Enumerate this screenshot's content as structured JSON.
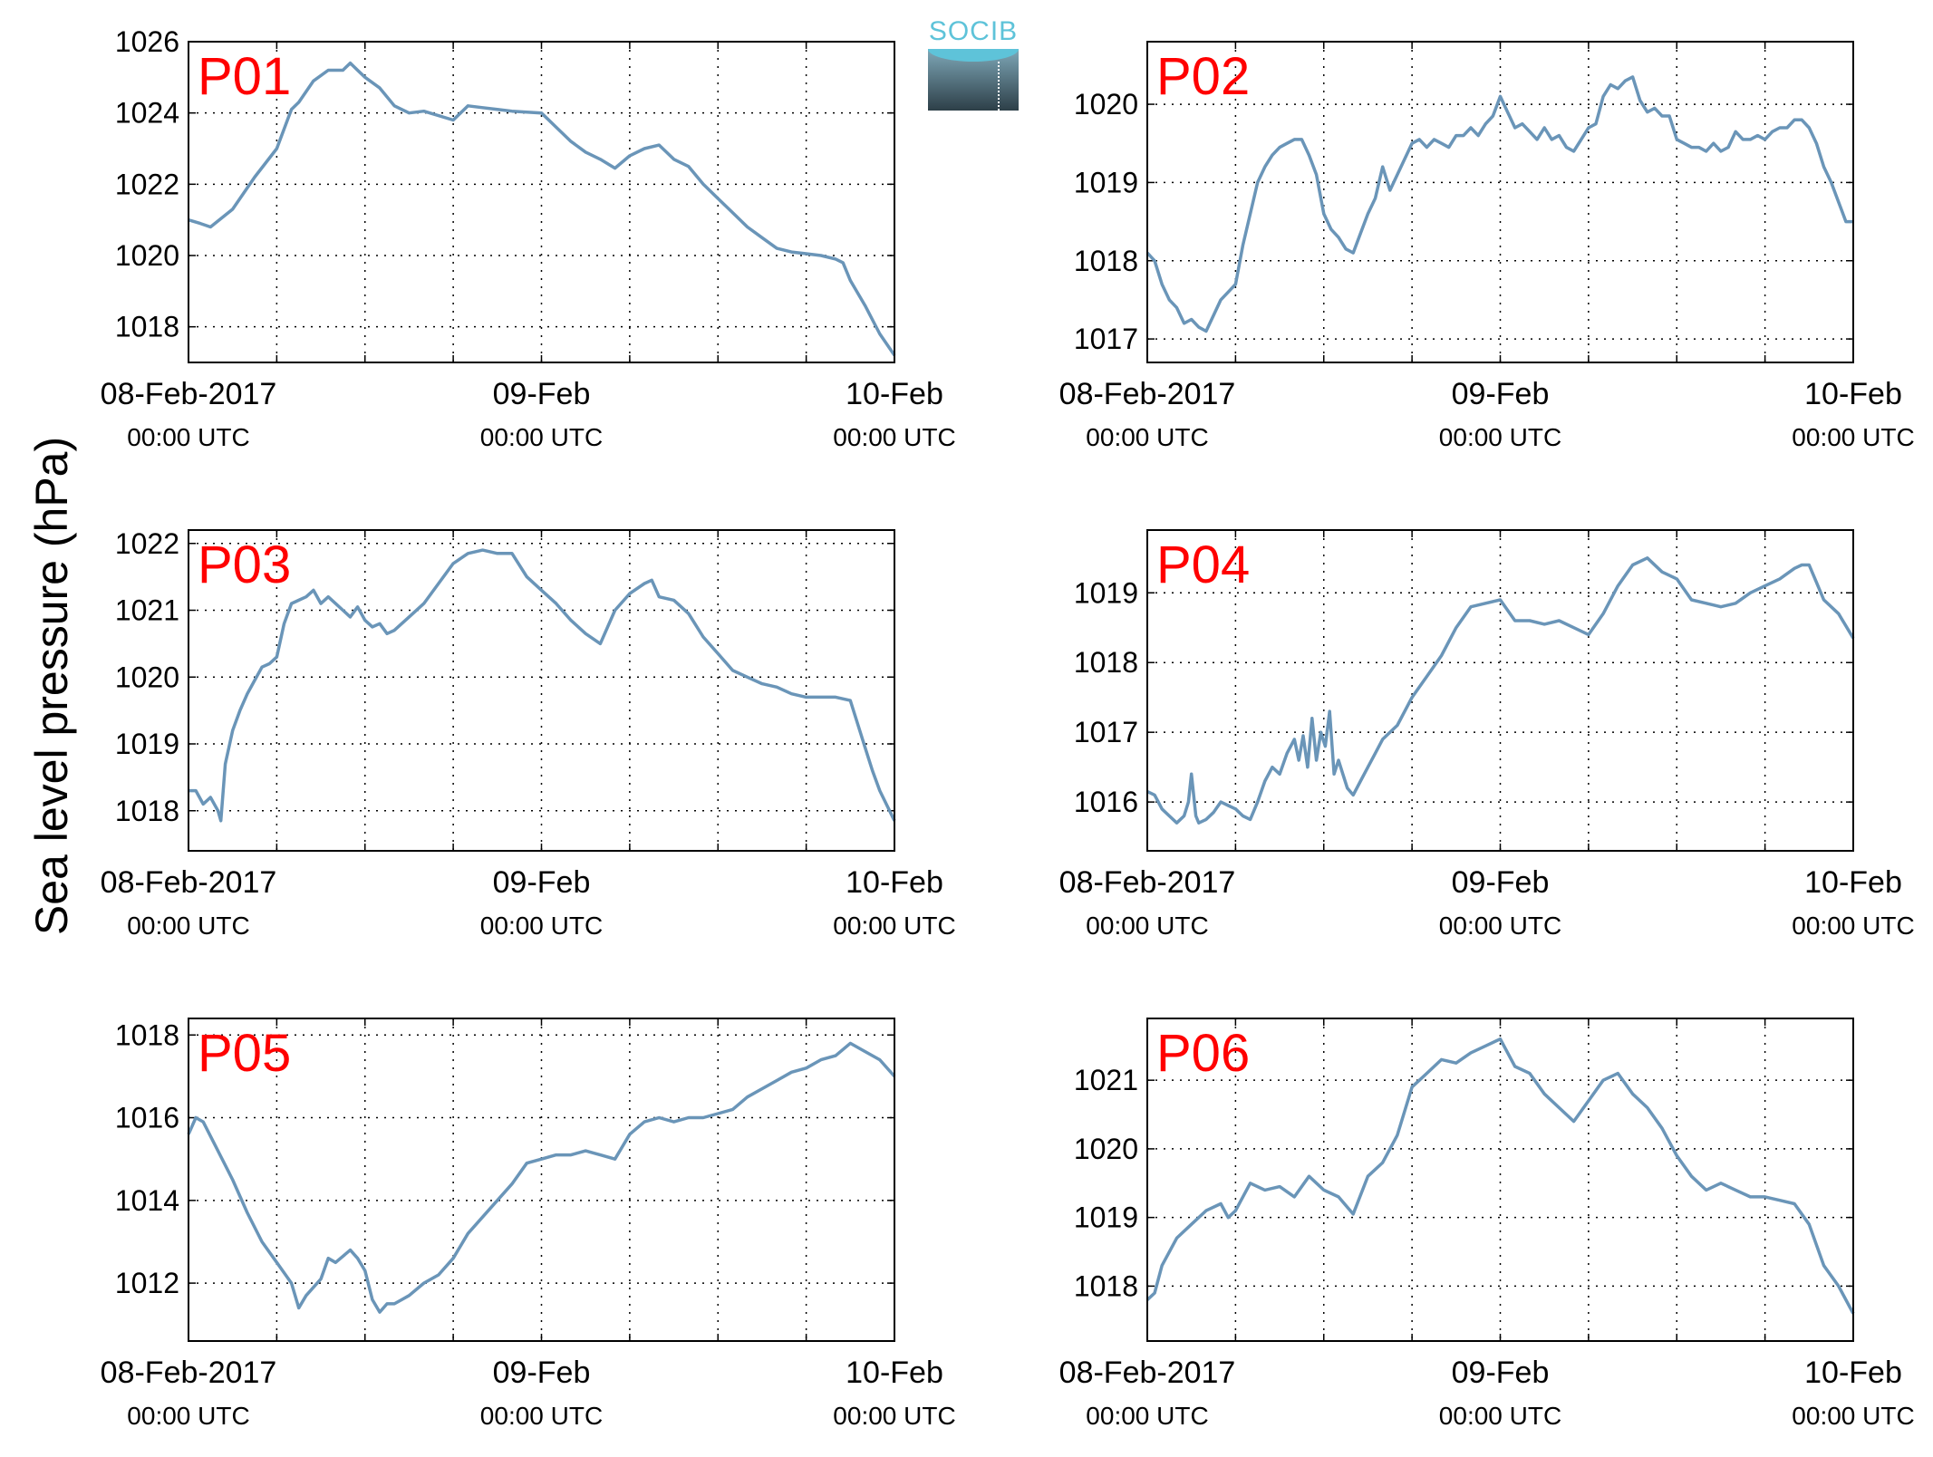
{
  "y_label": "Sea level pressure (hPa)",
  "logo": {
    "text": "SOCIB",
    "color": "#5ec3d9"
  },
  "styling": {
    "line_color": "#6a95b8",
    "panel_label_color": "#ff0000"
  },
  "chart_data": [
    {
      "type": "line",
      "label": "P01",
      "xlim": [
        0,
        48
      ],
      "ylim": [
        1017,
        1026
      ],
      "yticks": [
        1018,
        1020,
        1022,
        1024,
        1026
      ],
      "xticks": [
        {
          "t": 0,
          "line1": "08-Feb-2017",
          "line2": "00:00 UTC"
        },
        {
          "t": 24,
          "line1": "09-Feb",
          "line2": "00:00 UTC"
        },
        {
          "t": 48,
          "line1": "10-Feb",
          "line2": "00:00 UTC"
        }
      ],
      "grid": true,
      "x": [
        0,
        0.8,
        1.5,
        3,
        4.5,
        6,
        7,
        7.5,
        8.5,
        9.5,
        10.5,
        11,
        11.5,
        12,
        13,
        14,
        15,
        16,
        18,
        19,
        20,
        21,
        22,
        24,
        25,
        26,
        27,
        28,
        29,
        30,
        31,
        32,
        33,
        34,
        35,
        36,
        37,
        38,
        39,
        40,
        41,
        42,
        43,
        44,
        44.5,
        45,
        46,
        47,
        48
      ],
      "y": [
        1021,
        1020.9,
        1020.8,
        1021.3,
        1022.2,
        1023,
        1024.1,
        1024.3,
        1024.9,
        1025.2,
        1025.2,
        1025.4,
        1025.2,
        1025,
        1024.7,
        1024.2,
        1024,
        1024.05,
        1023.8,
        1024.2,
        1024.15,
        1024.1,
        1024.05,
        1024.0,
        1023.6,
        1023.2,
        1022.9,
        1022.7,
        1022.45,
        1022.8,
        1023,
        1023.1,
        1022.7,
        1022.5,
        1022,
        1021.6,
        1021.2,
        1020.8,
        1020.5,
        1020.2,
        1020.1,
        1020.05,
        1020,
        1019.9,
        1019.8,
        1019.3,
        1018.6,
        1017.8,
        1017.2
      ]
    },
    {
      "type": "line",
      "label": "P02",
      "xlim": [
        0,
        48
      ],
      "ylim": [
        1016.7,
        1020.8
      ],
      "yticks": [
        1017,
        1018,
        1019,
        1020
      ],
      "xticks": [
        {
          "t": 0,
          "line1": "08-Feb-2017",
          "line2": "00:00 UTC"
        },
        {
          "t": 24,
          "line1": "09-Feb",
          "line2": "00:00 UTC"
        },
        {
          "t": 48,
          "line1": "10-Feb",
          "line2": "00:00 UTC"
        }
      ],
      "grid": true,
      "x": [
        0,
        0.5,
        1,
        1.5,
        2,
        2.5,
        3,
        3.5,
        4,
        4.5,
        5,
        5.5,
        6,
        6.5,
        7,
        7.5,
        8,
        8.5,
        9,
        9.5,
        10,
        10.5,
        11,
        11.5,
        12,
        12.5,
        13,
        13.5,
        14,
        14.5,
        15,
        15.5,
        16,
        16.5,
        17,
        17.5,
        18,
        18.5,
        19,
        19.5,
        20,
        20.5,
        21,
        21.5,
        22,
        22.5,
        23,
        23.5,
        24,
        24.5,
        25,
        25.5,
        26,
        26.5,
        27,
        27.5,
        28,
        28.5,
        29,
        29.5,
        30,
        30.5,
        31,
        31.5,
        32,
        32.5,
        33,
        33.5,
        34,
        34.5,
        35,
        35.5,
        36,
        36.5,
        37,
        37.5,
        38,
        38.5,
        39,
        39.5,
        40,
        40.5,
        41,
        41.5,
        42,
        42.5,
        43,
        43.5,
        44,
        44.5,
        45,
        45.5,
        46,
        46.5,
        47,
        47.5,
        48
      ],
      "y": [
        1018.1,
        1018,
        1017.7,
        1017.5,
        1017.4,
        1017.2,
        1017.25,
        1017.15,
        1017.1,
        1017.3,
        1017.5,
        1017.6,
        1017.7,
        1018.2,
        1018.6,
        1019,
        1019.2,
        1019.35,
        1019.45,
        1019.5,
        1019.55,
        1019.55,
        1019.35,
        1019.1,
        1018.6,
        1018.4,
        1018.3,
        1018.15,
        1018.1,
        1018.35,
        1018.6,
        1018.8,
        1019.2,
        1018.9,
        1019.1,
        1019.3,
        1019.5,
        1019.55,
        1019.45,
        1019.55,
        1019.5,
        1019.45,
        1019.6,
        1019.6,
        1019.7,
        1019.6,
        1019.75,
        1019.85,
        1020.1,
        1019.9,
        1019.7,
        1019.75,
        1019.65,
        1019.55,
        1019.7,
        1019.55,
        1019.6,
        1019.45,
        1019.4,
        1019.55,
        1019.7,
        1019.75,
        1020.1,
        1020.25,
        1020.2,
        1020.3,
        1020.35,
        1020.05,
        1019.9,
        1019.95,
        1019.85,
        1019.85,
        1019.55,
        1019.5,
        1019.45,
        1019.45,
        1019.4,
        1019.5,
        1019.4,
        1019.45,
        1019.65,
        1019.55,
        1019.55,
        1019.6,
        1019.55,
        1019.65,
        1019.7,
        1019.7,
        1019.8,
        1019.8,
        1019.7,
        1019.5,
        1019.2,
        1019,
        1018.75,
        1018.5,
        1018.5
      ]
    },
    {
      "type": "line",
      "label": "P03",
      "xlim": [
        0,
        48
      ],
      "ylim": [
        1017.4,
        1022.2
      ],
      "yticks": [
        1018,
        1019,
        1020,
        1021,
        1022
      ],
      "xticks": [
        {
          "t": 0,
          "line1": "08-Feb-2017",
          "line2": "00:00 UTC"
        },
        {
          "t": 24,
          "line1": "09-Feb",
          "line2": "00:00 UTC"
        },
        {
          "t": 48,
          "line1": "10-Feb",
          "line2": "00:00 UTC"
        }
      ],
      "grid": true,
      "x": [
        0,
        0.5,
        1,
        1.5,
        2,
        2.2,
        2.5,
        3,
        3.5,
        4,
        4.5,
        5,
        5.5,
        6,
        6.5,
        7,
        7.5,
        8,
        8.5,
        9,
        9.5,
        10,
        10.5,
        11,
        11.5,
        12,
        12.5,
        13,
        13.5,
        14,
        15,
        16,
        17,
        18,
        19,
        20,
        21,
        22,
        23,
        24,
        25,
        26,
        27,
        28,
        29,
        30,
        31,
        31.5,
        32,
        33,
        34,
        35,
        36,
        37,
        38,
        39,
        40,
        41,
        42,
        43,
        44,
        45,
        45.5,
        46,
        46.5,
        47,
        48
      ],
      "y": [
        1018.3,
        1018.3,
        1018.1,
        1018.2,
        1018.0,
        1017.85,
        1018.7,
        1019.2,
        1019.5,
        1019.75,
        1019.95,
        1020.15,
        1020.2,
        1020.3,
        1020.8,
        1021.1,
        1021.15,
        1021.2,
        1021.3,
        1021.1,
        1021.2,
        1021.1,
        1021.0,
        1020.9,
        1021.05,
        1020.85,
        1020.75,
        1020.8,
        1020.65,
        1020.7,
        1020.9,
        1021.1,
        1021.4,
        1021.7,
        1021.85,
        1021.9,
        1021.85,
        1021.85,
        1021.5,
        1021.3,
        1021.1,
        1020.85,
        1020.65,
        1020.5,
        1021.0,
        1021.25,
        1021.4,
        1021.45,
        1021.2,
        1021.15,
        1020.95,
        1020.6,
        1020.35,
        1020.1,
        1020.0,
        1019.9,
        1019.85,
        1019.75,
        1019.7,
        1019.7,
        1019.7,
        1019.65,
        1019.3,
        1018.95,
        1018.6,
        1018.3,
        1017.85
      ]
    },
    {
      "type": "line",
      "label": "P04",
      "xlim": [
        0,
        48
      ],
      "ylim": [
        1015.3,
        1019.9
      ],
      "yticks": [
        1016,
        1017,
        1018,
        1019
      ],
      "xticks": [
        {
          "t": 0,
          "line1": "08-Feb-2017",
          "line2": "00:00 UTC"
        },
        {
          "t": 24,
          "line1": "09-Feb",
          "line2": "00:00 UTC"
        },
        {
          "t": 48,
          "line1": "10-Feb",
          "line2": "00:00 UTC"
        }
      ],
      "grid": true,
      "x": [
        0,
        0.5,
        1,
        1.5,
        2,
        2.5,
        2.8,
        3,
        3.3,
        3.5,
        4,
        4.5,
        5,
        5.5,
        6,
        6.5,
        7,
        7.5,
        8,
        8.5,
        9,
        9.5,
        10,
        10.3,
        10.6,
        10.9,
        11.2,
        11.5,
        11.8,
        12.1,
        12.4,
        12.7,
        13,
        13.3,
        13.6,
        14,
        14.5,
        15,
        15.5,
        16,
        17,
        18,
        19,
        20,
        21,
        22,
        23,
        24,
        25,
        26,
        27,
        28,
        29,
        30,
        31,
        32,
        33,
        34,
        35,
        36,
        37,
        38,
        39,
        40,
        41,
        42,
        43,
        44,
        44.5,
        45,
        45.5,
        46,
        47,
        48
      ],
      "y": [
        1016.15,
        1016.1,
        1015.9,
        1015.8,
        1015.7,
        1015.8,
        1016.0,
        1016.4,
        1015.8,
        1015.7,
        1015.75,
        1015.85,
        1016.0,
        1015.95,
        1015.9,
        1015.8,
        1015.75,
        1016.0,
        1016.3,
        1016.5,
        1016.4,
        1016.7,
        1016.9,
        1016.6,
        1016.95,
        1016.5,
        1017.2,
        1016.6,
        1017.0,
        1016.8,
        1017.3,
        1016.4,
        1016.6,
        1016.4,
        1016.2,
        1016.1,
        1016.3,
        1016.5,
        1016.7,
        1016.9,
        1017.1,
        1017.5,
        1017.8,
        1018.1,
        1018.5,
        1018.8,
        1018.85,
        1018.9,
        1018.6,
        1018.6,
        1018.55,
        1018.6,
        1018.5,
        1018.4,
        1018.7,
        1019.1,
        1019.4,
        1019.5,
        1019.3,
        1019.2,
        1018.9,
        1018.85,
        1018.8,
        1018.85,
        1019.0,
        1019.1,
        1019.2,
        1019.35,
        1019.4,
        1019.4,
        1019.15,
        1018.9,
        1018.7,
        1018.35
      ]
    },
    {
      "type": "line",
      "label": "P05",
      "xlim": [
        0,
        48
      ],
      "ylim": [
        1010.6,
        1018.4
      ],
      "yticks": [
        1012,
        1014,
        1016,
        1018
      ],
      "xticks": [
        {
          "t": 0,
          "line1": "08-Feb-2017",
          "line2": "00:00 UTC"
        },
        {
          "t": 24,
          "line1": "09-Feb",
          "line2": "00:00 UTC"
        },
        {
          "t": 48,
          "line1": "10-Feb",
          "line2": "00:00 UTC"
        }
      ],
      "grid": true,
      "x": [
        0,
        0.5,
        1,
        2,
        3,
        4,
        5,
        6,
        7,
        7.5,
        8,
        9,
        9.5,
        10,
        11,
        11.5,
        12,
        12.5,
        13,
        13.5,
        14,
        14.5,
        15,
        16,
        17,
        18,
        19,
        20,
        21,
        22,
        23,
        24,
        25,
        26,
        27,
        28,
        29,
        30,
        31,
        32,
        33,
        34,
        35,
        36,
        37,
        38,
        39,
        40,
        41,
        42,
        43,
        44,
        45,
        46,
        47,
        48
      ],
      "y": [
        1015.6,
        1016.0,
        1015.9,
        1015.2,
        1014.5,
        1013.7,
        1013.0,
        1012.5,
        1012.0,
        1011.4,
        1011.7,
        1012.1,
        1012.6,
        1012.5,
        1012.8,
        1012.6,
        1012.3,
        1011.6,
        1011.3,
        1011.5,
        1011.5,
        1011.6,
        1011.7,
        1012.0,
        1012.2,
        1012.6,
        1013.2,
        1013.6,
        1014.0,
        1014.4,
        1014.9,
        1015.0,
        1015.1,
        1015.1,
        1015.2,
        1015.1,
        1015.0,
        1015.6,
        1015.9,
        1016.0,
        1015.9,
        1016.0,
        1016.0,
        1016.1,
        1016.2,
        1016.5,
        1016.7,
        1016.9,
        1017.1,
        1017.2,
        1017.4,
        1017.5,
        1017.8,
        1017.6,
        1017.4,
        1017.0
      ]
    },
    {
      "type": "line",
      "label": "P06",
      "xlim": [
        0,
        48
      ],
      "ylim": [
        1017.2,
        1021.9
      ],
      "yticks": [
        1018,
        1019,
        1020,
        1021
      ],
      "xticks": [
        {
          "t": 0,
          "line1": "08-Feb-2017",
          "line2": "00:00 UTC"
        },
        {
          "t": 24,
          "line1": "09-Feb",
          "line2": "00:00 UTC"
        },
        {
          "t": 48,
          "line1": "10-Feb",
          "line2": "00:00 UTC"
        }
      ],
      "grid": true,
      "x": [
        0,
        0.5,
        1,
        2,
        3,
        4,
        5,
        5.5,
        6,
        7,
        8,
        9,
        10,
        11,
        12,
        13,
        14,
        15,
        16,
        17,
        18,
        19,
        20,
        21,
        22,
        23,
        24,
        25,
        26,
        27,
        28,
        29,
        30,
        31,
        32,
        33,
        34,
        35,
        36,
        37,
        38,
        39,
        40,
        41,
        42,
        43,
        44,
        45,
        46,
        47,
        48
      ],
      "y": [
        1017.8,
        1017.9,
        1018.3,
        1018.7,
        1018.9,
        1019.1,
        1019.2,
        1019.0,
        1019.1,
        1019.5,
        1019.4,
        1019.45,
        1019.3,
        1019.6,
        1019.4,
        1019.3,
        1019.05,
        1019.6,
        1019.8,
        1020.2,
        1020.9,
        1021.1,
        1021.3,
        1021.25,
        1021.4,
        1021.5,
        1021.6,
        1021.2,
        1021.1,
        1020.8,
        1020.6,
        1020.4,
        1020.7,
        1021.0,
        1021.1,
        1020.8,
        1020.6,
        1020.3,
        1019.9,
        1019.6,
        1019.4,
        1019.5,
        1019.4,
        1019.3,
        1019.3,
        1019.25,
        1019.2,
        1018.9,
        1018.3,
        1018.0,
        1017.6
      ]
    }
  ]
}
